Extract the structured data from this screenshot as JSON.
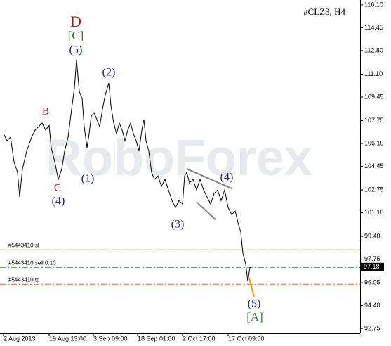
{
  "chart_data": {
    "type": "line",
    "title": "#CLZ3, H4",
    "watermark": "RoboForex",
    "x": [
      5,
      10,
      15,
      20,
      25,
      28,
      32,
      38,
      45,
      50,
      55,
      60,
      65,
      70,
      73,
      78,
      83,
      88,
      92,
      97,
      102,
      106,
      109,
      113,
      117,
      120,
      124,
      127,
      130,
      134,
      138,
      142,
      146,
      150,
      155,
      158,
      162,
      166,
      170,
      174,
      178,
      182,
      186,
      190,
      194,
      198,
      202,
      205,
      208,
      212,
      216,
      220,
      225,
      230,
      235,
      240,
      245,
      250,
      255,
      260,
      263,
      266,
      270,
      275,
      280,
      285,
      290,
      295,
      300,
      305,
      310,
      315,
      320,
      325,
      330,
      335,
      340,
      343,
      346,
      350,
      353,
      356,
      358
    ],
    "series": [
      {
        "name": "CLZ3",
        "color": "#000000",
        "values": [
          106.81,
          106.3,
          106.55,
          104.78,
          104.01,
          102.24,
          104.27,
          105.54,
          106.55,
          107.06,
          107.31,
          107.57,
          107.06,
          107.41,
          105.79,
          104.78,
          103.51,
          104.27,
          105.54,
          106.55,
          108.58,
          110.1,
          112.14,
          109.85,
          109.34,
          107.31,
          105.79,
          106.81,
          108.07,
          108.33,
          107.82,
          107.31,
          108.58,
          109.6,
          110.46,
          108.84,
          107.57,
          106.81,
          107.57,
          107.06,
          106.3,
          107.06,
          107.57,
          106.81,
          106.3,
          105.54,
          107.06,
          107.82,
          106.3,
          105.54,
          104.01,
          103.51,
          103.76,
          103.0,
          103.51,
          102.75,
          101.98,
          101.48,
          101.98,
          101.73,
          103.76,
          104.01,
          103.25,
          103.51,
          102.75,
          103.51,
          102.75,
          102.24,
          101.73,
          102.49,
          102.75,
          101.98,
          102.75,
          101.48,
          100.97,
          101.22,
          100.21,
          99.7,
          98.18,
          97.42,
          96.15,
          97.16,
          97.18
        ]
      }
    ],
    "xlim": [
      0,
      513
    ],
    "xticks": [
      {
        "value": 5,
        "label": "2 Aug 2013"
      },
      {
        "value": 70,
        "label": "19 Aug 13:00"
      },
      {
        "value": 133,
        "label": "3 Sep 09:00"
      },
      {
        "value": 196,
        "label": "18 Sep 01:00"
      },
      {
        "value": 260,
        "label": "2 Oct 17:00"
      },
      {
        "value": 325,
        "label": "17 Oct 09:00"
      }
    ],
    "ylim": [
      92.2,
      116.45
    ],
    "yticks": [
      {
        "value": 116.1,
        "label": "116.10"
      },
      114.45,
      {
        "value": 112.8,
        "label": "112.80"
      },
      {
        "value": 111.1,
        "label": "111.10"
      },
      109.45,
      107.75,
      {
        "value": 106.1,
        "label": "106.10"
      },
      104.45,
      102.75,
      {
        "value": 101.1,
        "label": "101.10"
      },
      {
        "value": 99.4,
        "label": "99.40"
      },
      97.75,
      96.05,
      {
        "value": 94.4,
        "label": "94.40"
      },
      92.75
    ],
    "last_price": 97.18,
    "levels": [
      {
        "label": "#5443410 sl",
        "value": 98.43,
        "color": "#e0622a"
      },
      {
        "label": "#5443410 sell 0.10",
        "value": 97.16,
        "color": "#2e8b2e"
      },
      {
        "label": "#5443410 tp",
        "value": 95.94,
        "color": "#e0622a"
      }
    ],
    "lines": [
      {
        "x": [
          355,
          362
        ],
        "values": [
          96.4,
          95.03
        ],
        "color": "#f5a000"
      },
      {
        "x": [
          266,
          330
        ],
        "values": [
          104.27,
          102.85
        ],
        "color": "#808080"
      },
      {
        "x": [
          280,
          307
        ],
        "values": [
          101.88,
          100.61
        ],
        "color": "#808080"
      }
    ],
    "annotations": [
      {
        "text": "D",
        "color": "#8b1a1a"
      },
      {
        "text": "[C]",
        "color": "#2e7d32"
      },
      {
        "text": "(5)",
        "color": "#1a237e"
      },
      {
        "text": "(2)",
        "color": "#1a237e"
      },
      {
        "text": "B",
        "color": "#8b1a1a"
      },
      {
        "text": "C",
        "color": "#8b1a1a"
      },
      {
        "text": "(4)",
        "color": "#1a237e"
      },
      {
        "text": "(1)",
        "color": "#1a237e"
      },
      {
        "text": "(3)",
        "color": "#1a237e"
      },
      {
        "text": "(4)",
        "color": "#1a237e"
      },
      {
        "text": "(5)",
        "color": "#1a237e"
      },
      {
        "text": "[A]",
        "color": "#2e7d32"
      }
    ]
  }
}
